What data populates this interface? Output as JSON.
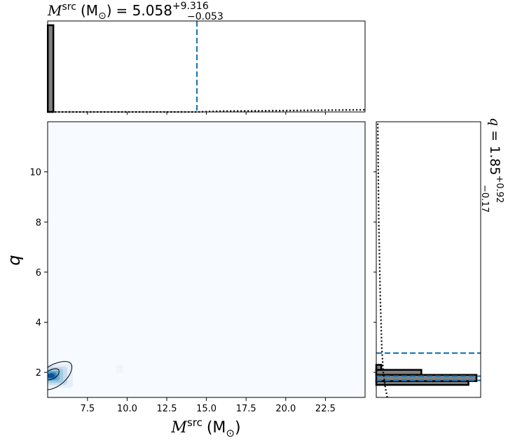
{
  "chart_data": {
    "type": "corner",
    "top_title": {
      "param": "M",
      "sup": "src",
      "unit": "(M",
      "sun": "⊙",
      "close": ")",
      "eq": "= 5.058",
      "plus": "+9.316",
      "minus": "−0.053"
    },
    "right_title": {
      "param": "q",
      "eq": "= 1.85",
      "plus": "+0.92",
      "minus": "−0.17"
    },
    "xlabel": {
      "param": "M",
      "sup": "src",
      "unit": "(M",
      "sun": "⊙",
      "close": ")"
    },
    "ylabel": "q",
    "xlim": [
      4.99,
      25.0
    ],
    "ylim": [
      1.0,
      12.0
    ],
    "xticks": [
      "7.5",
      "10.0",
      "12.5",
      "15.0",
      "17.5",
      "20.0",
      "22.5"
    ],
    "yticks": [
      "2",
      "4",
      "6",
      "8",
      "10"
    ],
    "x_marginal": {
      "hist": {
        "edges": [
          5.0,
          5.35
        ],
        "density": [
          1.0
        ]
      },
      "reference_line": 14.4,
      "prior_curve": [
        [
          5.0,
          0.0
        ],
        [
          14.4,
          0.0
        ],
        [
          16.0,
          0.01
        ],
        [
          20.0,
          0.016
        ],
        [
          25.0,
          0.025
        ]
      ]
    },
    "y_marginal": {
      "hist": {
        "edges": [
          1.5,
          1.65,
          1.9,
          2.1,
          2.3
        ],
        "density": [
          0.92,
          1.0,
          0.45,
          0.05
        ]
      },
      "quantile_lines": [
        1.68,
        1.85,
        2.77
      ],
      "prior_curve": [
        [
          1.0,
          0.11
        ],
        [
          1.4,
          0.09
        ],
        [
          2.0,
          0.07
        ],
        [
          3.0,
          0.055
        ],
        [
          5.0,
          0.04
        ],
        [
          8.0,
          0.025
        ],
        [
          12.0,
          0.015
        ]
      ]
    },
    "joint": {
      "colormap": "Blues",
      "peak": [
        5.3,
        1.92
      ],
      "contour_levels": [
        "inner",
        "outer"
      ]
    }
  }
}
